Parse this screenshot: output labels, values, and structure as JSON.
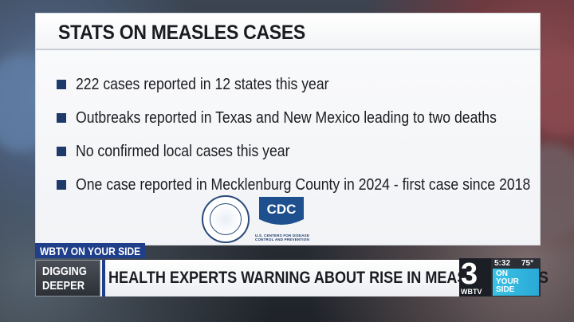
{
  "panel": {
    "title": "STATS ON MEASLES CASES",
    "bullets": [
      "222 cases reported in 12 states this year",
      "Outbreaks reported in Texas and New Mexico leading to two deaths",
      "No confirmed local cases this year",
      "One case reported in Mecklenburg County in 2024 - first case since 2018"
    ],
    "cdc_logo_text": "CDC",
    "cdc_caption": "U.S. CENTERS FOR DISEASE CONTROL AND PREVENTION"
  },
  "lower_third": {
    "tag": "WBTV ON YOUR SIDE",
    "digging_line1": "DIGGING",
    "digging_line2": "DEEPER",
    "headline": "HEALTH EXPERTS WARNING ABOUT RISE IN MEASLES CASES"
  },
  "bug": {
    "channel_number": "3",
    "station": "WBTV",
    "time": "5:32",
    "temperature": "75°",
    "slogan_line1": "ON",
    "slogan_line2": "YOUR",
    "slogan_line3": "SIDE"
  },
  "colors": {
    "navy": "#1f3f8a",
    "bullet_marker": "#1e3a6b",
    "cyan": "#39c3e5"
  }
}
